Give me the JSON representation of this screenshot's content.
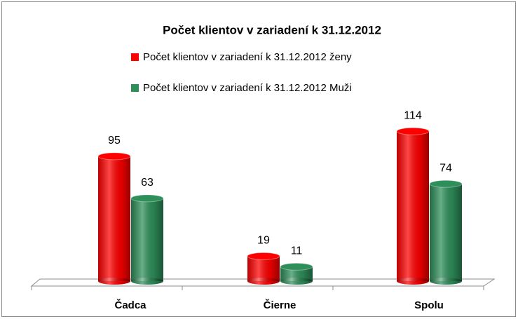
{
  "chart_data": {
    "type": "bar",
    "title": "Počet klientov v zariadení k 31.12.2012",
    "categories": [
      "Čadca",
      "Čierne",
      "Spolu"
    ],
    "series": [
      {
        "name": "Počet klientov v zariadení k 31.12.2012 ženy",
        "color": "#ff0000",
        "values": [
          95,
          19,
          114
        ]
      },
      {
        "name": "Počet klientov v zariadení k 31.12.2012 Muži",
        "color": "#2e8f5a",
        "values": [
          63,
          11,
          74
        ]
      }
    ],
    "legend": "top"
  }
}
